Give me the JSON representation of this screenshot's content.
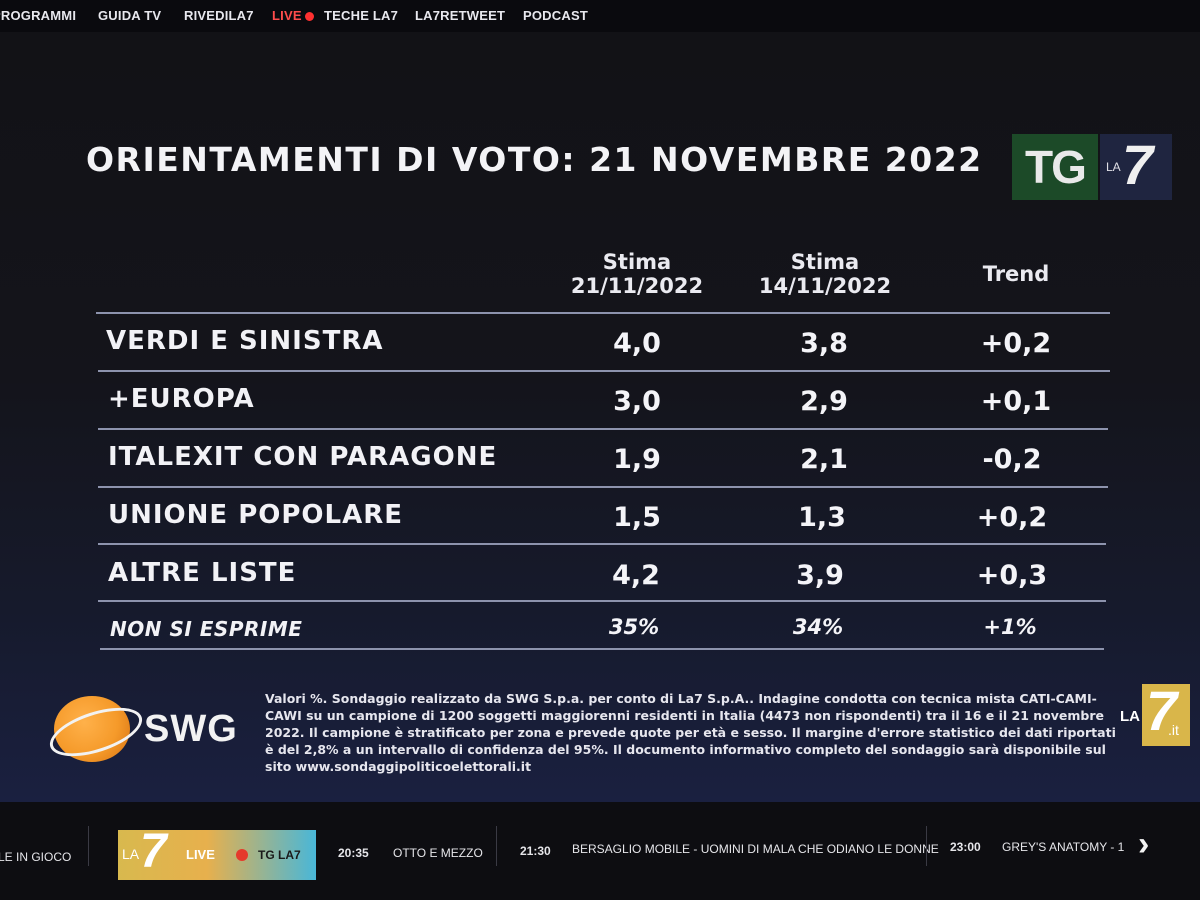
{
  "topnav": {
    "items": [
      "PROGRAMMI",
      "GUIDA TV",
      "RIVEDILA7",
      "LIVE",
      "TECHE LA7",
      "LA7RETWEET",
      "PODCAST"
    ]
  },
  "panel": {
    "title": "ORIENTAMENTI DI VOTO: 21 NOVEMBRE 2022",
    "logo_tg": "TG",
    "logo_la": "LA",
    "logo_seven": "7",
    "columns": [
      {
        "line1": "Stima",
        "line2": "21/11/2022"
      },
      {
        "line1": "Stima",
        "line2": "14/11/2022"
      },
      {
        "line1": "Trend",
        "line2": ""
      }
    ],
    "rows": [
      {
        "label": "VERDI E SINISTRA",
        "v1": "4,0",
        "v2": "3,8",
        "trend": "+0,2"
      },
      {
        "label": "+EUROPA",
        "v1": "3,0",
        "v2": "2,9",
        "trend": "+0,1"
      },
      {
        "label": "ITALEXIT CON PARAGONE",
        "v1": "1,9",
        "v2": "2,1",
        "trend": "-0,2"
      },
      {
        "label": "UNIONE POPOLARE",
        "v1": "1,5",
        "v2": "1,3",
        "trend": "+0,2"
      },
      {
        "label": "ALTRE LISTE",
        "v1": "4,2",
        "v2": "3,9",
        "trend": "+0,3"
      }
    ],
    "nonsi": {
      "label": "NON SI ESPRIME",
      "v1": "35%",
      "v2": "34%",
      "trend": "+1%"
    },
    "swg_label": "SWG",
    "note": "Valori %. Sondaggio realizzato da SWG S.p.a. per conto di La7 S.p.A.. Indagine condotta con tecnica mista CATI-CAMI-CAWI su un campione di 1200 soggetti maggiorenni residenti in Italia (4473 non rispondenti) tra il 16 e il 21 novembre 2022. Il campione è stratificato per zona e prevede quote per età e sesso. Il margine d'errore statistico dei dati riportati è del 2,8% a un intervallo di confidenza del 95%. Il documento informativo completo del sondaggio sarà disponibile sul sito www.sondaggipoliticoelettorali.it",
    "la7it_la": "LA",
    "la7it_seven": "7",
    "la7it_it": ".it"
  },
  "bottombar": {
    "left_text": "LE IN GIOCO",
    "live_la": "LA",
    "live_seven": "7",
    "live_label": "LIVE",
    "live_channel": "TG LA7",
    "schedule": [
      {
        "time": "20:35",
        "title": "OTTO E MEZZO"
      },
      {
        "time": "21:30",
        "title": "BERSAGLIO MOBILE - UOMINI DI MALA CHE ODIANO LE DONNE"
      },
      {
        "time": "23:00",
        "title": "GREY'S ANATOMY - 1"
      }
    ],
    "arrow": "›"
  },
  "colors": {
    "live_red": "#ff3030",
    "rule_line": "#8d93ad",
    "swg_orange": "#f59a2a",
    "tg_green": "#1c4a28"
  }
}
